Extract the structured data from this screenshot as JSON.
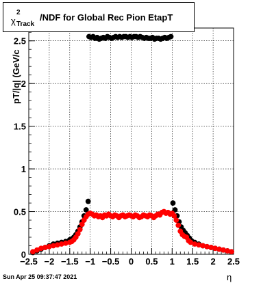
{
  "title": {
    "symbol": "χ",
    "superscript": "2",
    "subscript": "Track",
    "text": "/NDF for Global Rec Pion EtapT"
  },
  "timestamp": "Sun Apr 25 09:37:47 2021",
  "chart_data": {
    "type": "scatter",
    "xlabel": "η",
    "ylabel": "pT/|q| (GeV/c",
    "xlim": [
      -2.5,
      2.5
    ],
    "ylim": [
      0,
      2.65
    ],
    "grid": true,
    "x_ticks": [
      -2.5,
      -2,
      -1.5,
      -1,
      -0.5,
      0,
      0.5,
      1,
      1.5,
      2,
      2.5
    ],
    "x_tick_labels": [
      "−2.5",
      "−2",
      "−1.5",
      "−1",
      "−0.5",
      "0",
      "0.5",
      "1",
      "1.5",
      "2",
      "2.5"
    ],
    "y_ticks": [
      0,
      0.5,
      1,
      1.5,
      2,
      2.5
    ],
    "y_tick_labels": [
      "0",
      "0.5",
      "1",
      "1.5",
      "2",
      "2.5"
    ],
    "series": [
      {
        "color": "#000000",
        "points": [
          [
            -2.4,
            0.02
          ],
          [
            -2.3,
            0.04
          ],
          [
            -2.2,
            0.06
          ],
          [
            -2.1,
            0.08
          ],
          [
            -2.0,
            0.1
          ],
          [
            -1.9,
            0.12
          ],
          [
            -1.8,
            0.13
          ],
          [
            -1.7,
            0.14
          ],
          [
            -1.6,
            0.15
          ],
          [
            -1.5,
            0.17
          ],
          [
            -1.45,
            0.18
          ],
          [
            -1.4,
            0.2
          ],
          [
            -1.35,
            0.23
          ],
          [
            -1.3,
            0.27
          ],
          [
            -1.25,
            0.32
          ],
          [
            -1.2,
            0.38
          ],
          [
            -1.15,
            0.45
          ],
          [
            -1.1,
            0.52
          ],
          [
            -1.05,
            0.62
          ],
          [
            -1.03,
            2.55
          ],
          [
            -0.98,
            2.54
          ],
          [
            -0.93,
            2.55
          ],
          [
            -0.88,
            2.53
          ],
          [
            -0.83,
            2.54
          ],
          [
            -0.78,
            2.52
          ],
          [
            -0.73,
            2.53
          ],
          [
            -0.68,
            2.54
          ],
          [
            -0.63,
            2.53
          ],
          [
            -0.58,
            2.55
          ],
          [
            -0.53,
            2.54
          ],
          [
            -0.48,
            2.53
          ],
          [
            -0.43,
            2.54
          ],
          [
            -0.38,
            2.55
          ],
          [
            -0.33,
            2.54
          ],
          [
            -0.28,
            2.55
          ],
          [
            -0.23,
            2.54
          ],
          [
            -0.18,
            2.55
          ],
          [
            -0.13,
            2.55
          ],
          [
            -0.08,
            2.54
          ],
          [
            -0.03,
            2.55
          ],
          [
            0.02,
            2.54
          ],
          [
            0.07,
            2.55
          ],
          [
            0.12,
            2.55
          ],
          [
            0.17,
            2.54
          ],
          [
            0.22,
            2.55
          ],
          [
            0.27,
            2.54
          ],
          [
            0.32,
            2.53
          ],
          [
            0.37,
            2.54
          ],
          [
            0.42,
            2.53
          ],
          [
            0.47,
            2.53
          ],
          [
            0.52,
            2.54
          ],
          [
            0.57,
            2.52
          ],
          [
            0.62,
            2.53
          ],
          [
            0.67,
            2.53
          ],
          [
            0.72,
            2.52
          ],
          [
            0.77,
            2.53
          ],
          [
            0.82,
            2.54
          ],
          [
            0.87,
            2.53
          ],
          [
            0.92,
            2.54
          ],
          [
            0.97,
            2.55
          ],
          [
            1.02,
            0.6
          ],
          [
            1.07,
            0.52
          ],
          [
            1.12,
            0.45
          ],
          [
            1.17,
            0.38
          ],
          [
            1.22,
            0.32
          ],
          [
            1.27,
            0.28
          ],
          [
            1.32,
            0.25
          ],
          [
            1.37,
            0.22
          ],
          [
            1.42,
            0.19
          ],
          [
            1.47,
            0.16
          ],
          [
            1.55,
            0.14
          ],
          [
            1.65,
            0.12
          ],
          [
            1.75,
            0.1
          ],
          [
            1.85,
            0.09
          ],
          [
            1.95,
            0.08
          ],
          [
            2.05,
            0.07
          ],
          [
            2.15,
            0.06
          ],
          [
            2.25,
            0.05
          ],
          [
            2.35,
            0.04
          ],
          [
            2.45,
            0.03
          ]
        ]
      },
      {
        "color": "#ff0000",
        "points": [
          [
            -2.4,
            0.03
          ],
          [
            -2.3,
            0.05
          ],
          [
            -2.2,
            0.07
          ],
          [
            -2.1,
            0.08
          ],
          [
            -2.0,
            0.09
          ],
          [
            -1.9,
            0.1
          ],
          [
            -1.8,
            0.11
          ],
          [
            -1.7,
            0.12
          ],
          [
            -1.6,
            0.13
          ],
          [
            -1.5,
            0.14
          ],
          [
            -1.45,
            0.15
          ],
          [
            -1.4,
            0.17
          ],
          [
            -1.35,
            0.2
          ],
          [
            -1.3,
            0.24
          ],
          [
            -1.25,
            0.29
          ],
          [
            -1.2,
            0.35
          ],
          [
            -1.15,
            0.4
          ],
          [
            -1.1,
            0.44
          ],
          [
            -1.05,
            0.47
          ],
          [
            -1.0,
            0.48
          ],
          [
            -0.95,
            0.47
          ],
          [
            -0.9,
            0.45
          ],
          [
            -0.85,
            0.46
          ],
          [
            -0.8,
            0.44
          ],
          [
            -0.75,
            0.45
          ],
          [
            -0.7,
            0.43
          ],
          [
            -0.65,
            0.46
          ],
          [
            -0.6,
            0.45
          ],
          [
            -0.55,
            0.47
          ],
          [
            -0.5,
            0.45
          ],
          [
            -0.45,
            0.44
          ],
          [
            -0.4,
            0.46
          ],
          [
            -0.35,
            0.45
          ],
          [
            -0.3,
            0.43
          ],
          [
            -0.25,
            0.45
          ],
          [
            -0.2,
            0.46
          ],
          [
            -0.15,
            0.44
          ],
          [
            -0.1,
            0.45
          ],
          [
            -0.05,
            0.46
          ],
          [
            0.0,
            0.45
          ],
          [
            0.05,
            0.44
          ],
          [
            0.1,
            0.46
          ],
          [
            0.15,
            0.45
          ],
          [
            0.2,
            0.43
          ],
          [
            0.25,
            0.44
          ],
          [
            0.3,
            0.46
          ],
          [
            0.35,
            0.45
          ],
          [
            0.4,
            0.44
          ],
          [
            0.45,
            0.46
          ],
          [
            0.5,
            0.45
          ],
          [
            0.55,
            0.43
          ],
          [
            0.6,
            0.45
          ],
          [
            0.65,
            0.47
          ],
          [
            0.7,
            0.46
          ],
          [
            0.75,
            0.49
          ],
          [
            0.8,
            0.5
          ],
          [
            0.85,
            0.48
          ],
          [
            0.9,
            0.49
          ],
          [
            0.95,
            0.47
          ],
          [
            1.0,
            0.48
          ],
          [
            1.05,
            0.45
          ],
          [
            1.1,
            0.4
          ],
          [
            1.15,
            0.34
          ],
          [
            1.2,
            0.27
          ],
          [
            1.25,
            0.23
          ],
          [
            1.3,
            0.21
          ],
          [
            1.35,
            0.2
          ],
          [
            1.4,
            0.16
          ],
          [
            1.45,
            0.14
          ],
          [
            1.55,
            0.12
          ],
          [
            1.65,
            0.11
          ],
          [
            1.75,
            0.1
          ],
          [
            1.85,
            0.09
          ],
          [
            1.95,
            0.08
          ],
          [
            2.05,
            0.07
          ],
          [
            2.15,
            0.06
          ],
          [
            2.25,
            0.05
          ],
          [
            2.35,
            0.04
          ],
          [
            2.45,
            0.03
          ]
        ]
      }
    ]
  }
}
